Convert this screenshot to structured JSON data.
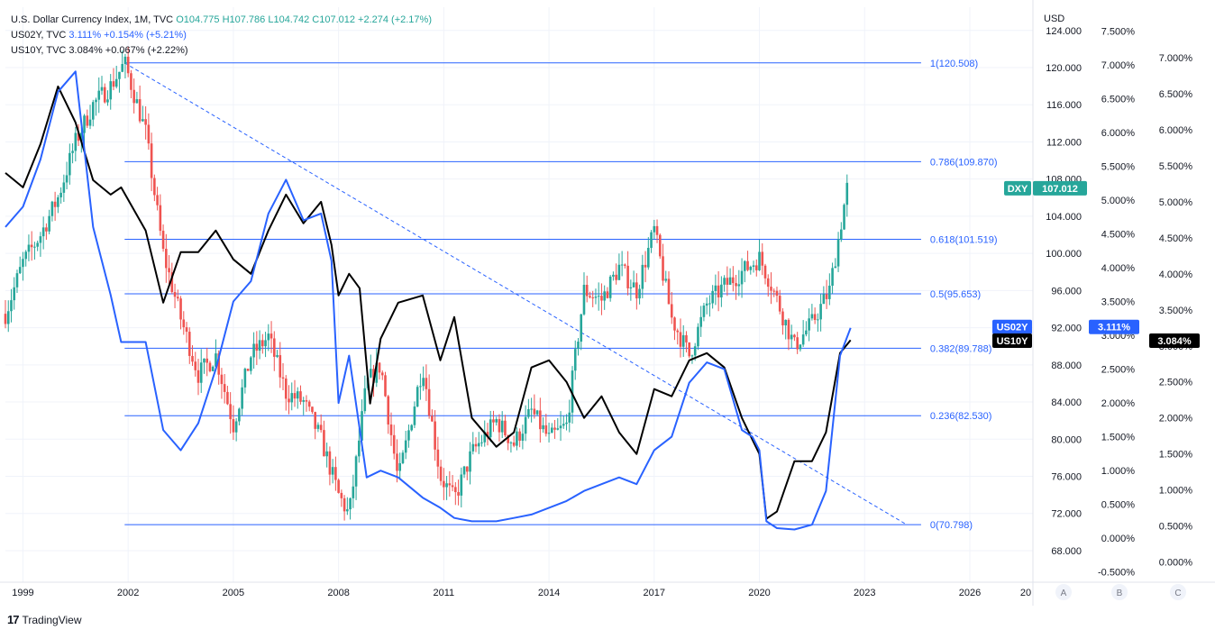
{
  "legend": {
    "dxy_name": "U.S. Dollar Currency Index, 1M, TVC",
    "dxy_ohlc": "O104.775 H107.786 L104.742 C107.012 +2.274 (+2.17%)",
    "us02y_name": "US02Y, TVC",
    "us02y_value": "3.111% +0.154% (+5.21%)",
    "us10y_name": "US10Y, TVC",
    "us10y_value": "3.084% +0.067% (+2.22%)"
  },
  "brand": {
    "logo": "17",
    "name": "TradingView"
  },
  "axes": {
    "currency_label": "USD",
    "scale_labels": [
      "A",
      "B",
      "C"
    ],
    "a_ticks": [
      "124.000",
      "120.000",
      "116.000",
      "112.000",
      "108.000",
      "104.000",
      "100.000",
      "96.000",
      "92.000",
      "88.000",
      "84.000",
      "80.000",
      "76.000",
      "72.000",
      "68.000"
    ],
    "b_ticks": [
      "7.500%",
      "7.000%",
      "6.500%",
      "6.000%",
      "5.500%",
      "5.000%",
      "4.500%",
      "4.000%",
      "3.500%",
      "3.000%",
      "2.500%",
      "2.000%",
      "1.500%",
      "1.000%",
      "0.500%",
      "0.000%",
      "-0.500%"
    ],
    "c_ticks": [
      "7.000%",
      "6.500%",
      "6.000%",
      "5.500%",
      "5.000%",
      "4.500%",
      "4.000%",
      "3.500%",
      "3.000%",
      "2.500%",
      "2.000%",
      "1.500%",
      "1.000%",
      "0.500%",
      "0.000%"
    ],
    "x_ticks": [
      "1999",
      "2002",
      "2005",
      "2008",
      "2011",
      "2014",
      "2017",
      "2020",
      "2023",
      "2026",
      "20"
    ]
  },
  "badges": {
    "dxy": {
      "name": "DXY",
      "value": "107.012"
    },
    "us02y": {
      "name": "US02Y",
      "value": "3.111%"
    },
    "us10y": {
      "name": "US10Y",
      "value": "3.084%"
    }
  },
  "colors": {
    "up": "#26a69a",
    "down": "#ef5350",
    "us02y": "#2962ff",
    "us10y": "#000000",
    "fib": "#2962ff",
    "grid": "#f0f3fa",
    "text": "#131722"
  },
  "chart_data": {
    "type": "line",
    "x_range": [
      1998.5,
      2027.8
    ],
    "fib_levels": [
      {
        "label": "1(120.508)",
        "value": 120.508
      },
      {
        "label": "0.786(109.870)",
        "value": 109.87
      },
      {
        "label": "0.618(101.519)",
        "value": 101.519
      },
      {
        "label": "0.5(95.653)",
        "value": 95.653
      },
      {
        "label": "0.382(89.788)",
        "value": 89.788
      },
      {
        "label": "0.236(82.530)",
        "value": 82.53
      },
      {
        "label": "0(70.798)",
        "value": 70.798
      }
    ],
    "fib_x_range": [
      2001.9,
      2024.2
    ],
    "trendline": {
      "x": [
        2001.9,
        2024.2
      ],
      "y": [
        120.5,
        70.8
      ]
    },
    "series": [
      {
        "name": "DXY",
        "kind": "candles",
        "axis": "A",
        "ylim": [
          64.6,
          126.5
        ],
        "x": [
          1998.5,
          1999.0,
          1999.5,
          2000.0,
          2000.5,
          2001.0,
          2001.5,
          2001.9,
          2002.5,
          2003.0,
          2003.5,
          2004.0,
          2004.5,
          2005.0,
          2005.5,
          2006.0,
          2006.5,
          2007.0,
          2007.5,
          2008.0,
          2008.3,
          2008.8,
          2009.2,
          2009.7,
          2010.4,
          2010.9,
          2011.3,
          2011.8,
          2012.5,
          2013.0,
          2013.5,
          2014.0,
          2014.5,
          2015.0,
          2015.5,
          2016.0,
          2016.5,
          2017.0,
          2017.5,
          2018.0,
          2018.5,
          2019.0,
          2019.5,
          2020.0,
          2020.3,
          2020.8,
          2021.0,
          2021.5,
          2022.0,
          2022.5
        ],
        "values": [
          93.5,
          99.0,
          102.0,
          106.0,
          112.0,
          116.0,
          118.0,
          120.5,
          113.0,
          100.0,
          93.0,
          87.0,
          89.0,
          81.5,
          89.0,
          91.0,
          85.0,
          84.0,
          80.0,
          74.0,
          71.8,
          86.0,
          88.0,
          75.5,
          88.0,
          76.0,
          73.5,
          78.5,
          82.0,
          79.5,
          83.0,
          80.0,
          81.5,
          96.0,
          95.0,
          98.5,
          96.0,
          102.5,
          93.0,
          89.0,
          94.5,
          96.5,
          98.0,
          99.5,
          97.0,
          92.0,
          90.0,
          92.5,
          96.0,
          107.0
        ]
      },
      {
        "name": "US02Y",
        "kind": "line",
        "axis": "B",
        "ylim": [
          -0.65,
          7.85
        ],
        "x": [
          1998.5,
          1999.0,
          1999.5,
          2000.0,
          2000.5,
          2001.0,
          2001.5,
          2001.8,
          2002.5,
          2003.0,
          2003.5,
          2004.0,
          2004.5,
          2005.0,
          2005.5,
          2006.0,
          2006.5,
          2007.0,
          2007.5,
          2007.8,
          2008.0,
          2008.3,
          2008.8,
          2009.2,
          2009.7,
          2010.4,
          2010.9,
          2011.3,
          2011.8,
          2012.5,
          2013.0,
          2013.5,
          2014.0,
          2014.5,
          2015.0,
          2015.5,
          2016.0,
          2016.5,
          2017.0,
          2017.5,
          2018.0,
          2018.5,
          2019.0,
          2019.5,
          2019.8,
          2020.0,
          2020.2,
          2020.5,
          2021.0,
          2021.5,
          2021.9,
          2022.3,
          2022.6
        ],
        "values": [
          4.6,
          4.9,
          5.6,
          6.6,
          6.9,
          4.6,
          3.6,
          2.9,
          2.9,
          1.6,
          1.3,
          1.7,
          2.5,
          3.5,
          3.8,
          4.8,
          5.3,
          4.7,
          4.8,
          4.1,
          2.0,
          2.7,
          0.9,
          1.0,
          0.9,
          0.6,
          0.45,
          0.3,
          0.25,
          0.25,
          0.3,
          0.35,
          0.45,
          0.55,
          0.7,
          0.8,
          0.9,
          0.8,
          1.3,
          1.5,
          2.3,
          2.6,
          2.5,
          1.6,
          1.5,
          1.3,
          0.25,
          0.15,
          0.13,
          0.2,
          0.7,
          2.7,
          3.11
        ]
      },
      {
        "name": "US10Y",
        "kind": "line",
        "axis": "C",
        "ylim": [
          -0.28,
          7.7
        ],
        "x": [
          1998.5,
          1999.0,
          1999.5,
          2000.0,
          2000.5,
          2001.0,
          2001.5,
          2001.8,
          2002.5,
          2003.0,
          2003.5,
          2004.0,
          2004.5,
          2005.0,
          2005.5,
          2006.0,
          2006.5,
          2007.0,
          2007.5,
          2007.8,
          2008.0,
          2008.3,
          2008.6,
          2008.9,
          2009.2,
          2009.7,
          2010.4,
          2010.9,
          2011.3,
          2011.8,
          2012.5,
          2013.0,
          2013.5,
          2014.0,
          2014.5,
          2015.0,
          2015.5,
          2016.0,
          2016.5,
          2017.0,
          2017.5,
          2018.0,
          2018.5,
          2019.0,
          2019.5,
          2019.8,
          2020.0,
          2020.2,
          2020.5,
          2021.0,
          2021.5,
          2021.9,
          2022.3,
          2022.6
        ],
        "values": [
          5.4,
          5.2,
          5.8,
          6.6,
          6.1,
          5.3,
          5.1,
          5.2,
          4.6,
          3.6,
          4.3,
          4.3,
          4.6,
          4.2,
          4.0,
          4.6,
          5.1,
          4.7,
          5.0,
          4.4,
          3.7,
          4.0,
          3.8,
          2.2,
          3.1,
          3.6,
          3.7,
          2.8,
          3.4,
          2.0,
          1.6,
          1.8,
          2.7,
          2.8,
          2.5,
          2.0,
          2.3,
          1.8,
          1.5,
          2.4,
          2.3,
          2.8,
          2.9,
          2.7,
          2.0,
          1.7,
          1.5,
          0.6,
          0.7,
          1.4,
          1.4,
          1.8,
          2.9,
          3.08
        ]
      }
    ]
  }
}
